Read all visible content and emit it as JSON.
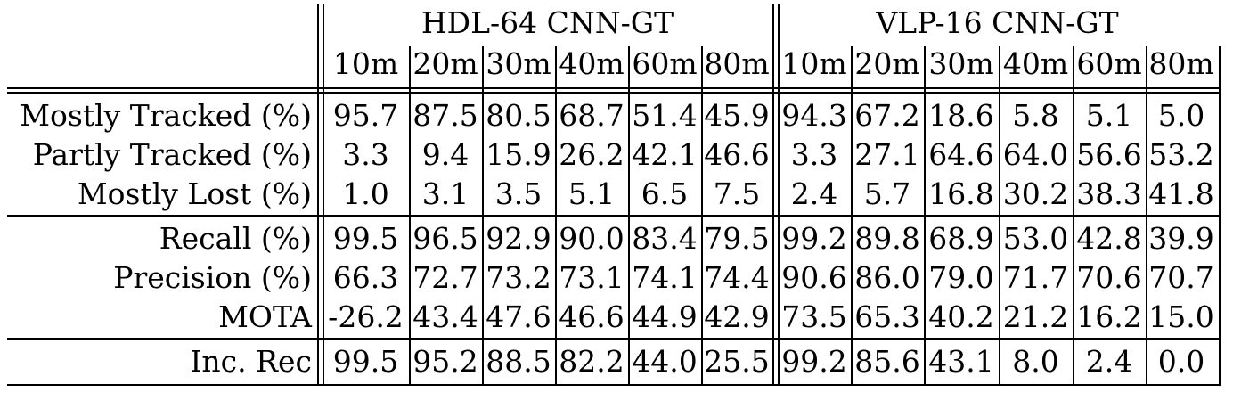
{
  "table": {
    "groups": [
      "HDL-64 CNN-GT",
      "VLP-16 CNN-GT"
    ],
    "columns": [
      "10m",
      "20m",
      "30m",
      "40m",
      "60m",
      "80m"
    ],
    "sections": [
      {
        "rows": [
          {
            "label": "Mostly Tracked (%)",
            "values": [
              "95.7",
              "87.5",
              "80.5",
              "68.7",
              "51.4",
              "45.9",
              "94.3",
              "67.2",
              "18.6",
              "5.8",
              "5.1",
              "5.0"
            ]
          },
          {
            "label": "Partly Tracked (%)",
            "values": [
              "3.3",
              "9.4",
              "15.9",
              "26.2",
              "42.1",
              "46.6",
              "3.3",
              "27.1",
              "64.6",
              "64.0",
              "56.6",
              "53.2"
            ]
          },
          {
            "label": "Mostly Lost (%)",
            "values": [
              "1.0",
              "3.1",
              "3.5",
              "5.1",
              "6.5",
              "7.5",
              "2.4",
              "5.7",
              "16.8",
              "30.2",
              "38.3",
              "41.8"
            ]
          }
        ]
      },
      {
        "rows": [
          {
            "label": "Recall (%)",
            "values": [
              "99.5",
              "96.5",
              "92.9",
              "90.0",
              "83.4",
              "79.5",
              "99.2",
              "89.8",
              "68.9",
              "53.0",
              "42.8",
              "39.9"
            ]
          },
          {
            "label": "Precision (%)",
            "values": [
              "66.3",
              "72.7",
              "73.2",
              "73.1",
              "74.1",
              "74.4",
              "90.6",
              "86.0",
              "79.0",
              "71.7",
              "70.6",
              "70.7"
            ]
          },
          {
            "label": "MOTA",
            "values": [
              "-26.2",
              "43.4",
              "47.6",
              "46.6",
              "44.9",
              "42.9",
              "73.5",
              "65.3",
              "40.2",
              "21.2",
              "16.2",
              "15.0"
            ]
          }
        ]
      },
      {
        "rows": [
          {
            "label": "Inc. Rec",
            "values": [
              "99.5",
              "95.2",
              "88.5",
              "82.2",
              "44.0",
              "25.5",
              "99.2",
              "85.6",
              "43.1",
              "8.0",
              "2.4",
              "0.0"
            ]
          }
        ]
      }
    ]
  }
}
